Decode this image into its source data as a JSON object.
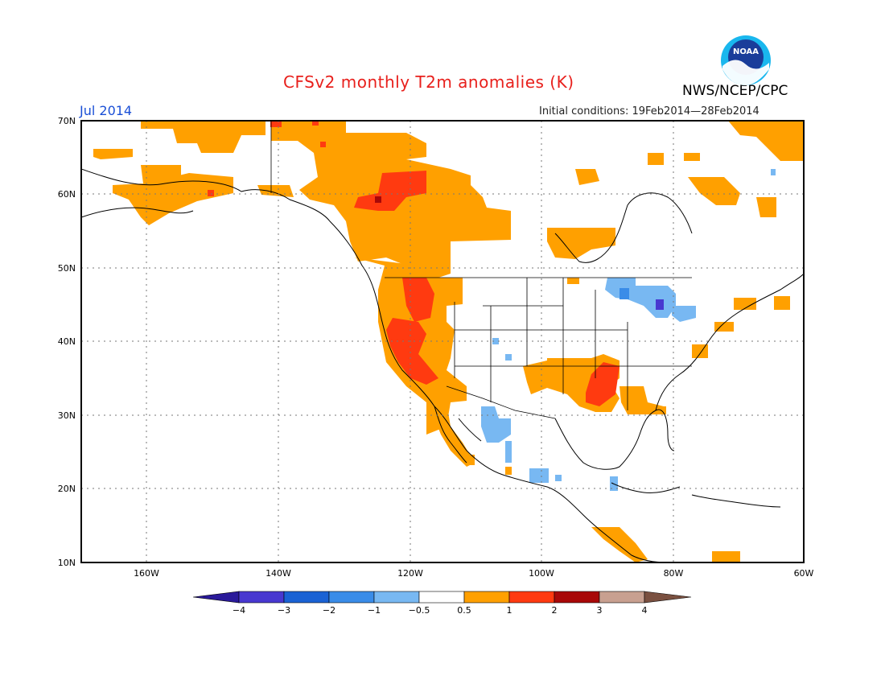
{
  "title": "CFSv2 monthly T2m anomalies (K)",
  "agency": "NWS/NCEP/CPC",
  "logo_text": "NOAA",
  "month": "Jul 2014",
  "initial_conditions": "Initial conditions: 19Feb2014—28Feb2014",
  "lat_labels": [
    "70N",
    "60N",
    "50N",
    "40N",
    "30N",
    "20N",
    "10N"
  ],
  "lon_labels": [
    "160W",
    "140W",
    "120W",
    "100W",
    "80W",
    "60W"
  ],
  "colorbar": {
    "labels": [
      "−4",
      "−3",
      "−2",
      "−1",
      "−0.5",
      "0.5",
      "1",
      "2",
      "3",
      "4"
    ],
    "colors": [
      "#2a1a9a",
      "#4838d0",
      "#1a62d4",
      "#3a8ce8",
      "#78b8f2",
      "#ffffff",
      "#ffa000",
      "#ff3a10",
      "#a80808",
      "#c8a090",
      "#7a5040"
    ]
  },
  "colors": {
    "warm_1": "#ffa000",
    "warm_2": "#ff3a10",
    "warm_3": "#a80808",
    "cool_1": "#78b8f2",
    "cool_2": "#3a8ce8",
    "cool_3": "#4838d0"
  }
}
